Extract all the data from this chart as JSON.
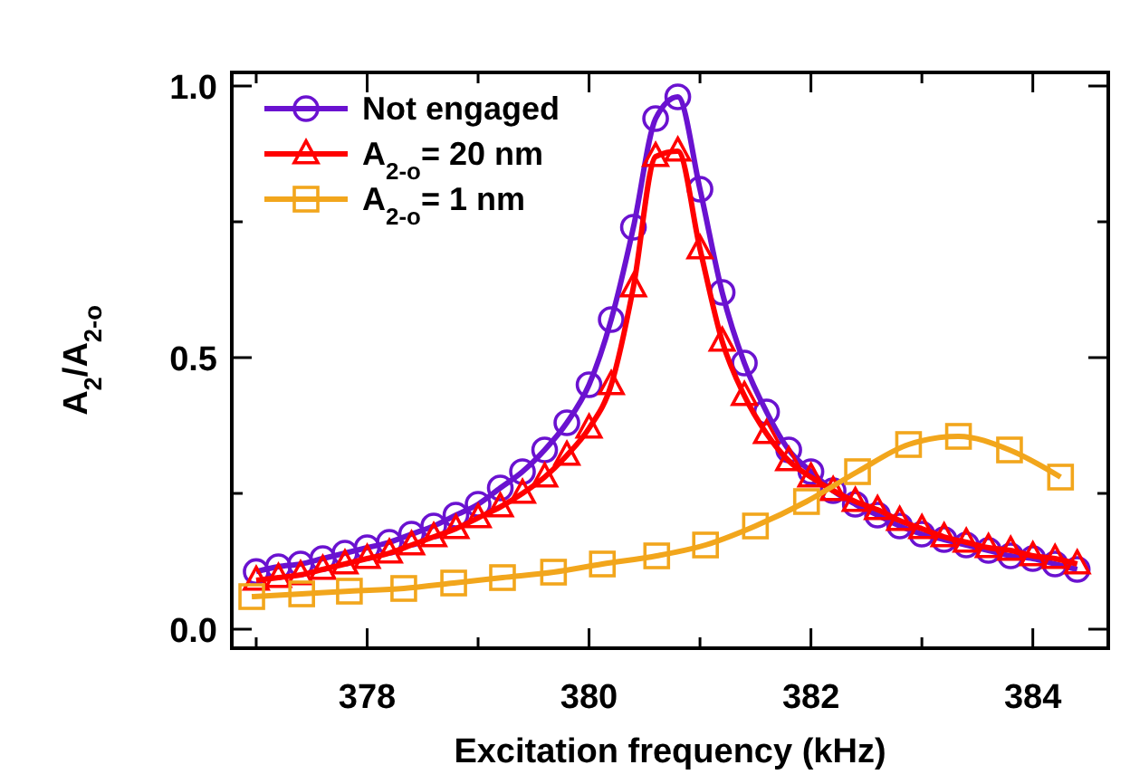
{
  "chart_data": {
    "type": "line",
    "xlabel": "Excitation frequency (kHz)",
    "ylabel": "A$_{2}$/A$_{2-o}$",
    "xlim": [
      376.78,
      384.68
    ],
    "ylim": [
      -0.035,
      1.025
    ],
    "xticks": [
      {
        "value": 377,
        "label": null
      },
      378,
      {
        "value": 379,
        "label": null
      },
      380,
      {
        "value": 381,
        "label": null
      },
      382,
      {
        "value": 383,
        "label": null
      },
      384
    ],
    "yticks": [
      {
        "value": 0,
        "label": "0.0"
      },
      {
        "value": 0.25,
        "label": null
      },
      {
        "value": 0.5,
        "label": "0.5"
      },
      {
        "value": 0.75,
        "label": null
      },
      {
        "value": 1,
        "label": "1.0"
      }
    ],
    "grid": false,
    "legend": "top left",
    "line_style": "solid",
    "series": [
      {
        "name": "Not engaged",
        "color": "#6a12d0",
        "marker": "circle",
        "x": [
          377.0,
          377.2,
          377.4,
          377.6,
          377.8,
          378.0,
          378.2,
          378.4,
          378.6,
          378.8,
          379.0,
          379.2,
          379.4,
          379.6,
          379.8,
          380.0,
          380.2,
          380.4,
          380.6,
          380.8,
          381.0,
          381.2,
          381.4,
          381.6,
          381.8,
          382.0,
          382.2,
          382.4,
          382.6,
          382.8,
          383.0,
          383.2,
          383.4,
          383.6,
          383.8,
          384.0,
          384.2,
          384.4
        ],
        "values": [
          0.106,
          0.115,
          0.12,
          0.13,
          0.14,
          0.15,
          0.16,
          0.175,
          0.19,
          0.21,
          0.23,
          0.26,
          0.29,
          0.33,
          0.38,
          0.45,
          0.57,
          0.74,
          0.94,
          0.98,
          0.81,
          0.62,
          0.49,
          0.4,
          0.33,
          0.29,
          0.255,
          0.23,
          0.21,
          0.19,
          0.175,
          0.165,
          0.155,
          0.145,
          0.135,
          0.13,
          0.12,
          0.11
        ]
      },
      {
        "name": "A$_{2-o}$= 20 nm",
        "color": "#ff0000",
        "marker": "triangle",
        "x": [
          377.0,
          377.2,
          377.4,
          377.6,
          377.8,
          378.0,
          378.2,
          378.4,
          378.6,
          378.8,
          379.0,
          379.2,
          379.4,
          379.6,
          379.8,
          380.0,
          380.2,
          380.4,
          380.6,
          380.8,
          381.0,
          381.2,
          381.4,
          381.6,
          381.8,
          382.0,
          382.2,
          382.4,
          382.6,
          382.8,
          383.0,
          383.2,
          383.4,
          383.6,
          383.8,
          384.0,
          384.2,
          384.4
        ],
        "values": [
          0.09,
          0.095,
          0.1,
          0.11,
          0.12,
          0.13,
          0.14,
          0.155,
          0.17,
          0.185,
          0.205,
          0.225,
          0.25,
          0.28,
          0.32,
          0.37,
          0.45,
          0.63,
          0.87,
          0.88,
          0.7,
          0.53,
          0.43,
          0.36,
          0.31,
          0.28,
          0.255,
          0.235,
          0.22,
          0.2,
          0.185,
          0.17,
          0.16,
          0.15,
          0.145,
          0.135,
          0.13,
          0.12
        ]
      },
      {
        "name": "A$_{2-o}$= 1 nm",
        "color": "#f2a61c",
        "marker": "square",
        "x": [
          376.96,
          377.41,
          377.84,
          378.33,
          378.78,
          379.22,
          379.68,
          380.12,
          380.61,
          381.05,
          381.5,
          381.96,
          382.42,
          382.88,
          383.33,
          383.79,
          384.25
        ],
        "values": [
          0.06,
          0.065,
          0.07,
          0.075,
          0.085,
          0.095,
          0.105,
          0.12,
          0.135,
          0.155,
          0.19,
          0.235,
          0.29,
          0.34,
          0.355,
          0.33,
          0.28
        ]
      }
    ]
  }
}
